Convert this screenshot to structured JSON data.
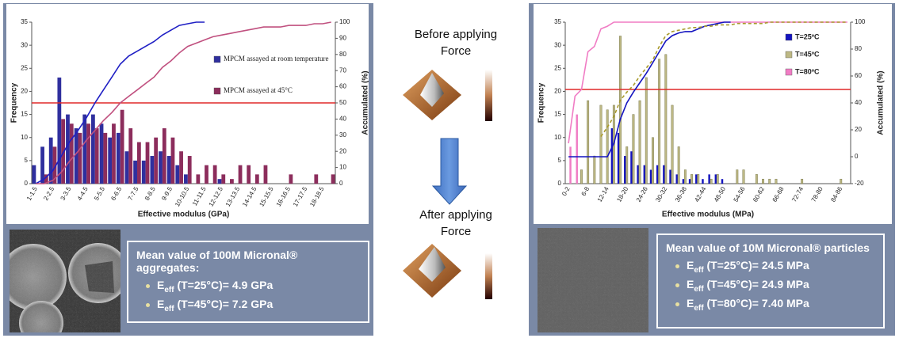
{
  "chart_data": [
    {
      "type": "bar",
      "x_label": "Effective modulus (GPa)",
      "y_label": "Frequency",
      "y2_label": "Accumulated (%)",
      "categories": [
        "1-1.5",
        null,
        "2-2.5",
        null,
        "3-3.5",
        null,
        "4-4.5",
        null,
        "5-5.5",
        null,
        "6-6.5",
        null,
        "7-7.5",
        null,
        "8-8.5",
        null,
        "9-9.5",
        null,
        "10-10.5",
        null,
        "11-11.5",
        null,
        "12-12.5",
        null,
        "13-13.5",
        null,
        "14-14.5",
        null,
        "15-15.5",
        null,
        "16-16.5",
        null,
        "17-17.5",
        null,
        "18-18.5",
        null
      ],
      "ylim": [
        0,
        35
      ],
      "yticks": [
        0,
        5,
        10,
        15,
        20,
        25,
        30,
        35
      ],
      "y2lim": [
        0,
        100
      ],
      "y2ticks": [
        0,
        10,
        20,
        30,
        40,
        50,
        60,
        70,
        80,
        90,
        100
      ],
      "legend": "upper right",
      "series": [
        {
          "name": "MPCM assayed at room temperature",
          "color": "#2f2f9e",
          "values": [
            4,
            8,
            10,
            23,
            15,
            12,
            15,
            15,
            13,
            10,
            11,
            7,
            5,
            5,
            6,
            7,
            6,
            4,
            2,
            0,
            0,
            0,
            1,
            0,
            0,
            0,
            0,
            0,
            0,
            0,
            0,
            0,
            0,
            0,
            0,
            0
          ]
        },
        {
          "name": "MPCM assayed at 45°C",
          "color": "#8c2d5c",
          "values": [
            0,
            2,
            8,
            14,
            13,
            11,
            13,
            12,
            11,
            13,
            16,
            12,
            9,
            9,
            10,
            12,
            10,
            7,
            6,
            2,
            4,
            4,
            2,
            1,
            4,
            4,
            2,
            4,
            0,
            0,
            2,
            0,
            0,
            2,
            0,
            2
          ]
        },
        {
          "color": "#1f1fc4",
          "axis": "y2",
          "values": [
            0,
            3,
            8,
            17,
            26,
            33,
            41,
            50,
            58,
            66,
            74,
            79,
            82,
            85,
            88,
            92,
            95,
            98,
            99,
            100,
            100,
            null,
            null,
            null,
            null,
            null,
            null,
            null,
            null,
            null,
            null,
            null,
            null,
            null,
            null,
            null
          ]
        },
        {
          "color": "#c0507f",
          "axis": "y2",
          "values": [
            0,
            0,
            2,
            7,
            14,
            20,
            27,
            33,
            39,
            44,
            50,
            54,
            58,
            62,
            66,
            72,
            76,
            81,
            85,
            87,
            89,
            91,
            92,
            93,
            94,
            95,
            96,
            97,
            97,
            97,
            98,
            98,
            98,
            99,
            99,
            100
          ]
        }
      ],
      "hlines": [
        {
          "value": 50,
          "axis": "y2",
          "color": "#e02828"
        }
      ]
    },
    {
      "type": "bar",
      "x_label": "Effective modulus (MPa)",
      "y_label": "Frequency",
      "y2_label": "Accumulated (%)",
      "categories": [
        "0-2",
        null,
        null,
        "6-8",
        null,
        null,
        "12-14",
        null,
        null,
        "18-20",
        null,
        null,
        "24-26",
        null,
        null,
        "30-32",
        null,
        null,
        "36-38",
        null,
        null,
        "42-44",
        null,
        null,
        "48-50",
        null,
        null,
        "54-56",
        null,
        null,
        "60-62",
        null,
        null,
        "66-68",
        null,
        null,
        "72-74",
        null,
        null,
        "78-80",
        null,
        null,
        "84-86",
        null
      ],
      "ylim": [
        0,
        35
      ],
      "yticks": [
        0,
        5,
        10,
        15,
        20,
        25,
        30,
        35
      ],
      "y2lim": [
        -20,
        100
      ],
      "y2ticks": [
        -20,
        0,
        20,
        40,
        60,
        80,
        100
      ],
      "legend": "upper right",
      "series": [
        {
          "name": "T=25ºC",
          "color": "#1414c0",
          "values": [
            0,
            0,
            0,
            0,
            0,
            0,
            0,
            12,
            11,
            6,
            7,
            4,
            4,
            3,
            4,
            4,
            3,
            2,
            1,
            1,
            2,
            1,
            2,
            2,
            1,
            0,
            0,
            0,
            0,
            0,
            0,
            0,
            0,
            0,
            0,
            0,
            0,
            0,
            0,
            0,
            0,
            0,
            0,
            0
          ]
        },
        {
          "name": "T=45ºC",
          "color": "#bdb884",
          "values": [
            0,
            0,
            3,
            18,
            6,
            17,
            16,
            17,
            32,
            8,
            15,
            18,
            23,
            10,
            27,
            28,
            17,
            8,
            3,
            2,
            2,
            0,
            1,
            2,
            0,
            0,
            3,
            3,
            0,
            2,
            1,
            1,
            1,
            0,
            0,
            0,
            1,
            0,
            0,
            0,
            0,
            0,
            1,
            0
          ]
        },
        {
          "name": "T=80ºC",
          "color": "#f07cc4",
          "values": [
            8,
            15,
            0,
            0,
            0,
            0,
            0,
            0,
            0,
            0,
            0,
            0,
            0,
            0,
            0,
            0,
            0,
            0,
            0,
            0,
            0,
            0,
            0,
            0,
            0,
            0,
            0,
            0,
            0,
            0,
            0,
            0,
            0,
            0,
            0,
            0,
            0,
            0,
            0,
            0,
            0,
            0,
            0,
            0
          ]
        },
        {
          "color": "#f07cc4",
          "axis": "y2",
          "values": [
            10,
            45,
            50,
            78,
            82,
            95,
            97,
            100,
            100,
            100,
            100,
            100,
            100,
            100,
            100,
            100,
            100,
            100,
            100,
            100,
            100,
            100,
            100,
            100,
            100,
            100,
            100,
            100,
            100,
            100,
            100,
            100,
            100,
            100,
            100,
            100,
            100,
            100,
            100,
            100,
            100,
            100,
            100,
            100
          ]
        },
        {
          "color": "#1414c0",
          "axis": "y2",
          "values": [
            0,
            0,
            0,
            0,
            0,
            0,
            0,
            10,
            28,
            40,
            48,
            55,
            62,
            70,
            78,
            86,
            90,
            92,
            93,
            93,
            95,
            97,
            98,
            99,
            100,
            100,
            null,
            null,
            null,
            null,
            null,
            null,
            null,
            null,
            null,
            null,
            null,
            null,
            null,
            null,
            null,
            null,
            null,
            null
          ]
        },
        {
          "color": "#a89a2a",
          "axis": "y2",
          "dashed": true,
          "values": [
            null,
            null,
            null,
            null,
            null,
            15,
            22,
            30,
            42,
            48,
            53,
            60,
            66,
            72,
            82,
            90,
            93,
            94,
            95,
            96,
            96,
            97,
            97,
            98,
            98,
            98,
            99,
            99,
            99,
            99,
            99,
            100,
            100,
            100,
            100,
            100,
            100,
            100,
            100,
            100,
            100,
            100,
            100,
            100
          ]
        }
      ],
      "hlines": [
        {
          "value": 50,
          "axis": "y2",
          "color": "#e02828"
        }
      ]
    }
  ],
  "middle": {
    "before": [
      "Before applying",
      "Force"
    ],
    "after": [
      "After applying",
      "Force"
    ]
  },
  "info_boxes": [
    {
      "title": "Mean value of 100M Micronal® aggregates:",
      "items": [
        {
          "symbol": "E",
          "subscript": "eff",
          "text": "(T=25°C)= 4.9 GPa"
        },
        {
          "symbol": "E",
          "subscript": "eff",
          "text": "(T=45°C)= 7.2 GPa"
        }
      ]
    },
    {
      "title": "Mean value of 10M Micronal® particles",
      "items": [
        {
          "symbol": "E",
          "subscript": "eff",
          "text": "(T=25°C)= 24.5 MPa"
        },
        {
          "symbol": "E",
          "subscript": "eff",
          "text": "(T=45°C)= 24.9 MPa"
        },
        {
          "symbol": "E",
          "subscript": "eff",
          "text": "(T=80°C)= 7.40 MPa"
        }
      ]
    }
  ]
}
